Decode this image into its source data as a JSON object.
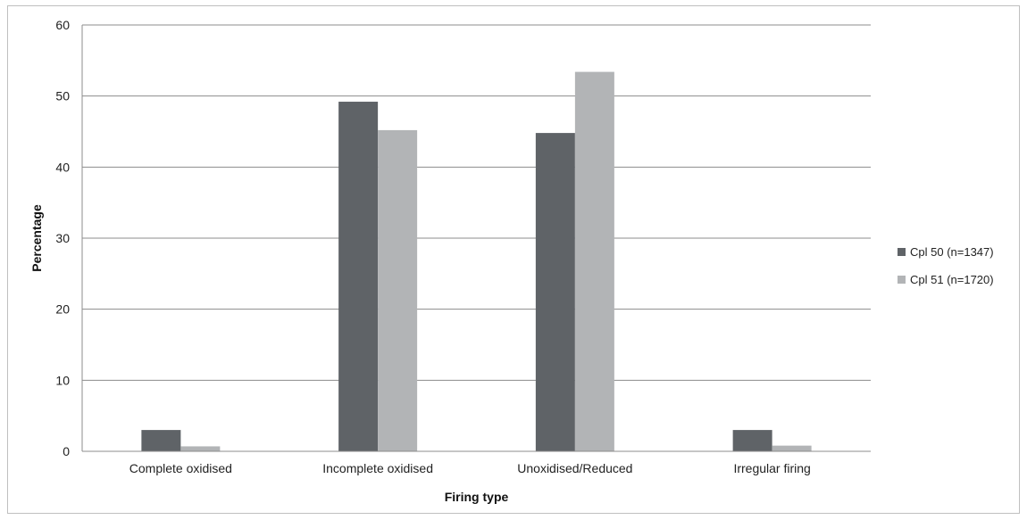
{
  "chart_data": {
    "type": "bar",
    "title": "",
    "xlabel": "Firing type",
    "ylabel": "Percentage",
    "categories": [
      "Complete oxidised",
      "Incomplete oxidised",
      "Unoxidised/Reduced",
      "Irregular firing"
    ],
    "series": [
      {
        "name": "Cpl 50 (n=1347)",
        "values": [
          3.0,
          49.2,
          44.8,
          3.0
        ],
        "color": "#5f6367"
      },
      {
        "name": "Cpl 51 (n=1720)",
        "values": [
          0.7,
          45.2,
          53.4,
          0.8
        ],
        "color": "#b2b4b6"
      }
    ],
    "ylim": [
      0,
      60
    ],
    "yticks": [
      0,
      10,
      20,
      30,
      40,
      50,
      60
    ],
    "grid": true,
    "legend": "right"
  }
}
